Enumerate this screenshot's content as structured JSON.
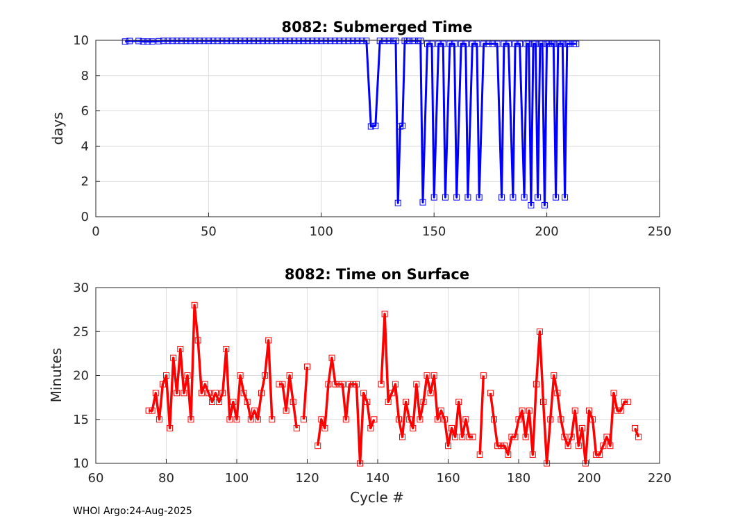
{
  "footer": "WHOI Argo:24-Aug-2025",
  "chart_data": [
    {
      "type": "line",
      "title": "8082: Submerged Time",
      "xlabel": "",
      "ylabel": "days",
      "xlim": [
        0,
        250
      ],
      "ylim": [
        0,
        10
      ],
      "xticks": [
        "0",
        "50",
        "100",
        "150",
        "200",
        "250"
      ],
      "yticks": [
        "0",
        "2",
        "4",
        "6",
        "8",
        "10"
      ],
      "grid": true,
      "color": "#0000ff",
      "series": [
        {
          "x": [
            13,
            15,
            19,
            21,
            23,
            25,
            28,
            30,
            32,
            34,
            36,
            38,
            40,
            42,
            44,
            46,
            48,
            50,
            52,
            54,
            56,
            58,
            60,
            62,
            64,
            66,
            68,
            70,
            72,
            74,
            76,
            78,
            80,
            82,
            84,
            86,
            88,
            90,
            92,
            94,
            96,
            98,
            100,
            102,
            104,
            106,
            108,
            110,
            112,
            114,
            116,
            118,
            120,
            122,
            124,
            126,
            128,
            130,
            132,
            133,
            134,
            135,
            136,
            137,
            138,
            139,
            141,
            143,
            144,
            145,
            147,
            149,
            150,
            152,
            154,
            155,
            157,
            159,
            160,
            162,
            164,
            165,
            167,
            169,
            170,
            172,
            174,
            176,
            178,
            180,
            181,
            183,
            185,
            186,
            188,
            190,
            191,
            192,
            193,
            194,
            195,
            196,
            197,
            198,
            199,
            200,
            201,
            202,
            203,
            204,
            205,
            206,
            207,
            208,
            209,
            210,
            212,
            213
          ],
          "y": [
            9.93,
            9.96,
            9.96,
            9.93,
            9.93,
            9.93,
            9.95,
            9.97,
            9.97,
            9.97,
            9.97,
            9.97,
            9.97,
            9.97,
            9.97,
            9.97,
            9.97,
            9.97,
            9.97,
            9.97,
            9.97,
            9.97,
            9.97,
            9.97,
            9.97,
            9.97,
            9.97,
            9.97,
            9.97,
            9.97,
            9.97,
            9.97,
            9.97,
            9.97,
            9.97,
            9.97,
            9.97,
            9.97,
            9.97,
            9.97,
            9.97,
            9.97,
            9.97,
            9.97,
            9.97,
            9.97,
            9.97,
            9.97,
            9.97,
            9.97,
            9.97,
            9.97,
            9.97,
            5.12,
            5.15,
            9.97,
            9.97,
            9.97,
            9.97,
            9.97,
            0.78,
            5.12,
            5.15,
            9.97,
            9.97,
            9.97,
            9.97,
            9.97,
            9.97,
            0.82,
            9.8,
            9.8,
            1.1,
            9.8,
            9.8,
            1.1,
            9.8,
            9.8,
            1.1,
            9.8,
            9.8,
            1.1,
            9.8,
            9.8,
            1.1,
            9.8,
            9.8,
            9.8,
            9.8,
            1.1,
            9.8,
            9.8,
            1.1,
            9.8,
            9.8,
            1.1,
            9.8,
            9.8,
            0.65,
            9.8,
            9.8,
            1.1,
            9.8,
            9.8,
            0.65,
            9.8,
            9.8,
            9.8,
            9.8,
            1.1,
            9.8,
            9.8,
            9.8,
            1.1,
            9.8,
            9.8,
            9.8,
            9.8
          ]
        }
      ]
    },
    {
      "type": "line",
      "title": "8082: Time on Surface",
      "xlabel": "Cycle #",
      "ylabel": "Minutes",
      "xlim": [
        60,
        220
      ],
      "ylim": [
        10,
        30
      ],
      "xticks": [
        "60",
        "80",
        "100",
        "120",
        "140",
        "160",
        "180",
        "200",
        "220"
      ],
      "yticks": [
        "10",
        "15",
        "20",
        "25",
        "30"
      ],
      "grid": true,
      "color": "#ff0000",
      "series": [
        {
          "segments": [
            {
              "x": [
                75,
                76,
                77,
                78,
                79,
                80,
                81,
                82,
                83,
                84,
                85,
                86,
                87,
                88,
                89,
                90,
                91,
                92,
                93,
                94,
                95,
                96,
                97,
                98,
                99,
                100,
                101,
                102,
                103,
                104,
                105,
                106,
                107,
                108,
                109,
                110
              ],
              "y": [
                16,
                16,
                18,
                15,
                19,
                20,
                14,
                22,
                18,
                23,
                18,
                20,
                15,
                28,
                24,
                18,
                19,
                18,
                17,
                18,
                17,
                18,
                23,
                15,
                17,
                15,
                20,
                18,
                17,
                15,
                16,
                15,
                18,
                20,
                24,
                15
              ]
            },
            {
              "x": [
                112,
                113,
                114,
                115,
                116,
                117
              ],
              "y": [
                19,
                19,
                16,
                20,
                17,
                14
              ]
            },
            {
              "x": [
                119,
                120
              ],
              "y": [
                15,
                21
              ]
            },
            {
              "x": [
                123,
                124,
                125,
                126,
                127,
                128,
                129,
                130,
                131,
                132,
                133,
                134,
                135,
                136,
                137,
                138,
                139
              ],
              "y": [
                12,
                15,
                14,
                19,
                22,
                19,
                19,
                19,
                15,
                19,
                19,
                19,
                10,
                18,
                17,
                14,
                15
              ]
            },
            {
              "x": [
                141,
                142,
                143,
                144,
                145,
                146,
                147,
                148,
                149,
                150,
                151,
                152,
                153,
                154,
                155,
                156,
                157,
                158,
                159,
                160,
                161,
                162,
                163,
                164,
                165,
                166,
                167
              ],
              "y": [
                19,
                27,
                17,
                18,
                19,
                15,
                13,
                17,
                15,
                14,
                19,
                15,
                17,
                20,
                18,
                20,
                15,
                16,
                15,
                12,
                14,
                13,
                17,
                13,
                15,
                13,
                13
              ]
            },
            {
              "x": [
                169,
                170
              ],
              "y": [
                11,
                20
              ]
            },
            {
              "x": [
                172,
                173,
                174,
                175,
                176,
                177,
                178,
                179,
                180,
                181,
                182,
                183,
                184,
                185,
                186,
                187,
                188,
                189,
                190,
                191,
                192,
                193,
                194,
                195,
                196,
                197,
                198,
                199,
                200,
                201,
                202,
                203,
                204,
                205,
                206,
                207,
                208,
                209,
                210,
                211
              ],
              "y": [
                18,
                15,
                12,
                12,
                12,
                11,
                13,
                13,
                15,
                16,
                13,
                16,
                11,
                19,
                25,
                17,
                10,
                15,
                20,
                18,
                15,
                13,
                12,
                13,
                16,
                12,
                14,
                10,
                16,
                15,
                11,
                11,
                12,
                13,
                12,
                18,
                16,
                16,
                17,
                17
              ]
            },
            {
              "x": [
                213,
                214
              ],
              "y": [
                14,
                13
              ]
            }
          ]
        }
      ]
    }
  ]
}
